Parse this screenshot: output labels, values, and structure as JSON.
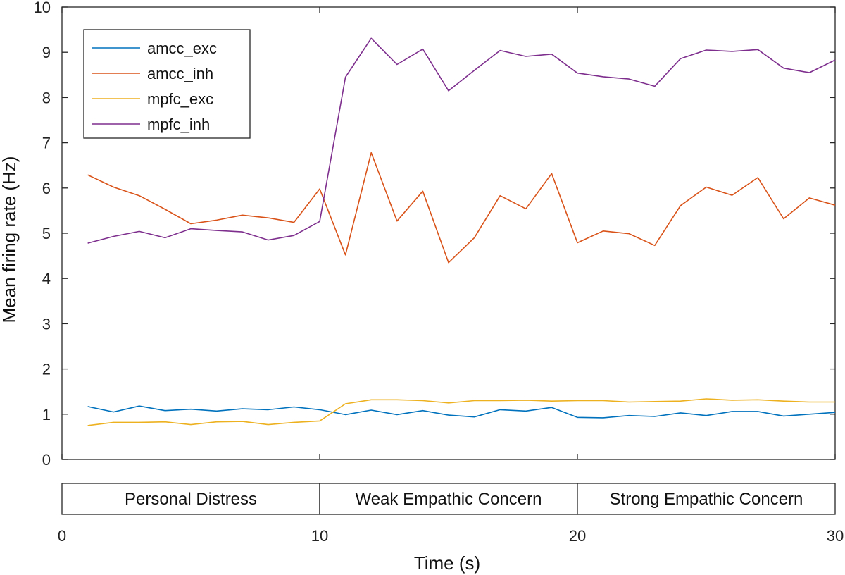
{
  "chart_data": {
    "type": "line",
    "title": "",
    "xlabel": "Time (s)",
    "ylabel": "Mean firing rate (Hz)",
    "xlim": [
      0,
      30
    ],
    "ylim": [
      0,
      10
    ],
    "xticks": [
      0,
      10,
      20,
      30
    ],
    "yticks": [
      0,
      1,
      2,
      3,
      4,
      5,
      6,
      7,
      8,
      9,
      10
    ],
    "grid": false,
    "legend_position": "top-left",
    "x": [
      1,
      2,
      3,
      4,
      5,
      6,
      7,
      8,
      9,
      10,
      11,
      12,
      13,
      14,
      15,
      16,
      17,
      18,
      19,
      20,
      21,
      22,
      23,
      24,
      25,
      26,
      27,
      28,
      29,
      30
    ],
    "series": [
      {
        "name": "amcc_exc",
        "color": "#0072BD",
        "values": [
          1.17,
          1.05,
          1.18,
          1.08,
          1.11,
          1.07,
          1.12,
          1.1,
          1.16,
          1.1,
          0.99,
          1.09,
          0.99,
          1.08,
          0.98,
          0.94,
          1.1,
          1.07,
          1.15,
          0.93,
          0.92,
          0.97,
          0.95,
          1.03,
          0.97,
          1.06,
          1.06,
          0.96,
          1.0,
          1.04
        ]
      },
      {
        "name": "amcc_inh",
        "color": "#D95319",
        "values": [
          6.29,
          6.02,
          5.83,
          5.53,
          5.21,
          5.29,
          5.4,
          5.34,
          5.24,
          5.98,
          4.52,
          6.78,
          5.27,
          5.93,
          4.35,
          4.9,
          5.83,
          5.54,
          6.32,
          4.79,
          5.05,
          4.99,
          4.73,
          5.61,
          6.02,
          5.84,
          6.23,
          5.32,
          5.78,
          5.62
        ]
      },
      {
        "name": "mpfc_exc",
        "color": "#EDB120",
        "values": [
          0.75,
          0.82,
          0.82,
          0.83,
          0.77,
          0.83,
          0.84,
          0.77,
          0.82,
          0.85,
          1.23,
          1.32,
          1.32,
          1.3,
          1.25,
          1.3,
          1.3,
          1.31,
          1.29,
          1.3,
          1.3,
          1.27,
          1.28,
          1.29,
          1.34,
          1.31,
          1.32,
          1.29,
          1.27,
          1.27
        ]
      },
      {
        "name": "mpfc_inh",
        "color": "#7E2F8E",
        "values": [
          4.78,
          4.93,
          5.04,
          4.9,
          5.1,
          5.06,
          5.03,
          4.85,
          4.95,
          5.26,
          8.45,
          9.31,
          8.73,
          9.07,
          8.15,
          8.6,
          9.04,
          8.91,
          8.96,
          8.54,
          8.46,
          8.41,
          8.25,
          8.86,
          9.05,
          9.02,
          9.06,
          8.65,
          8.55,
          8.83
        ]
      }
    ],
    "phases": [
      {
        "label": "Personal Distress",
        "start": 0,
        "end": 10
      },
      {
        "label": "Weak Empathic Concern",
        "start": 10,
        "end": 20
      },
      {
        "label": "Strong Empathic Concern",
        "start": 20,
        "end": 30
      }
    ]
  }
}
